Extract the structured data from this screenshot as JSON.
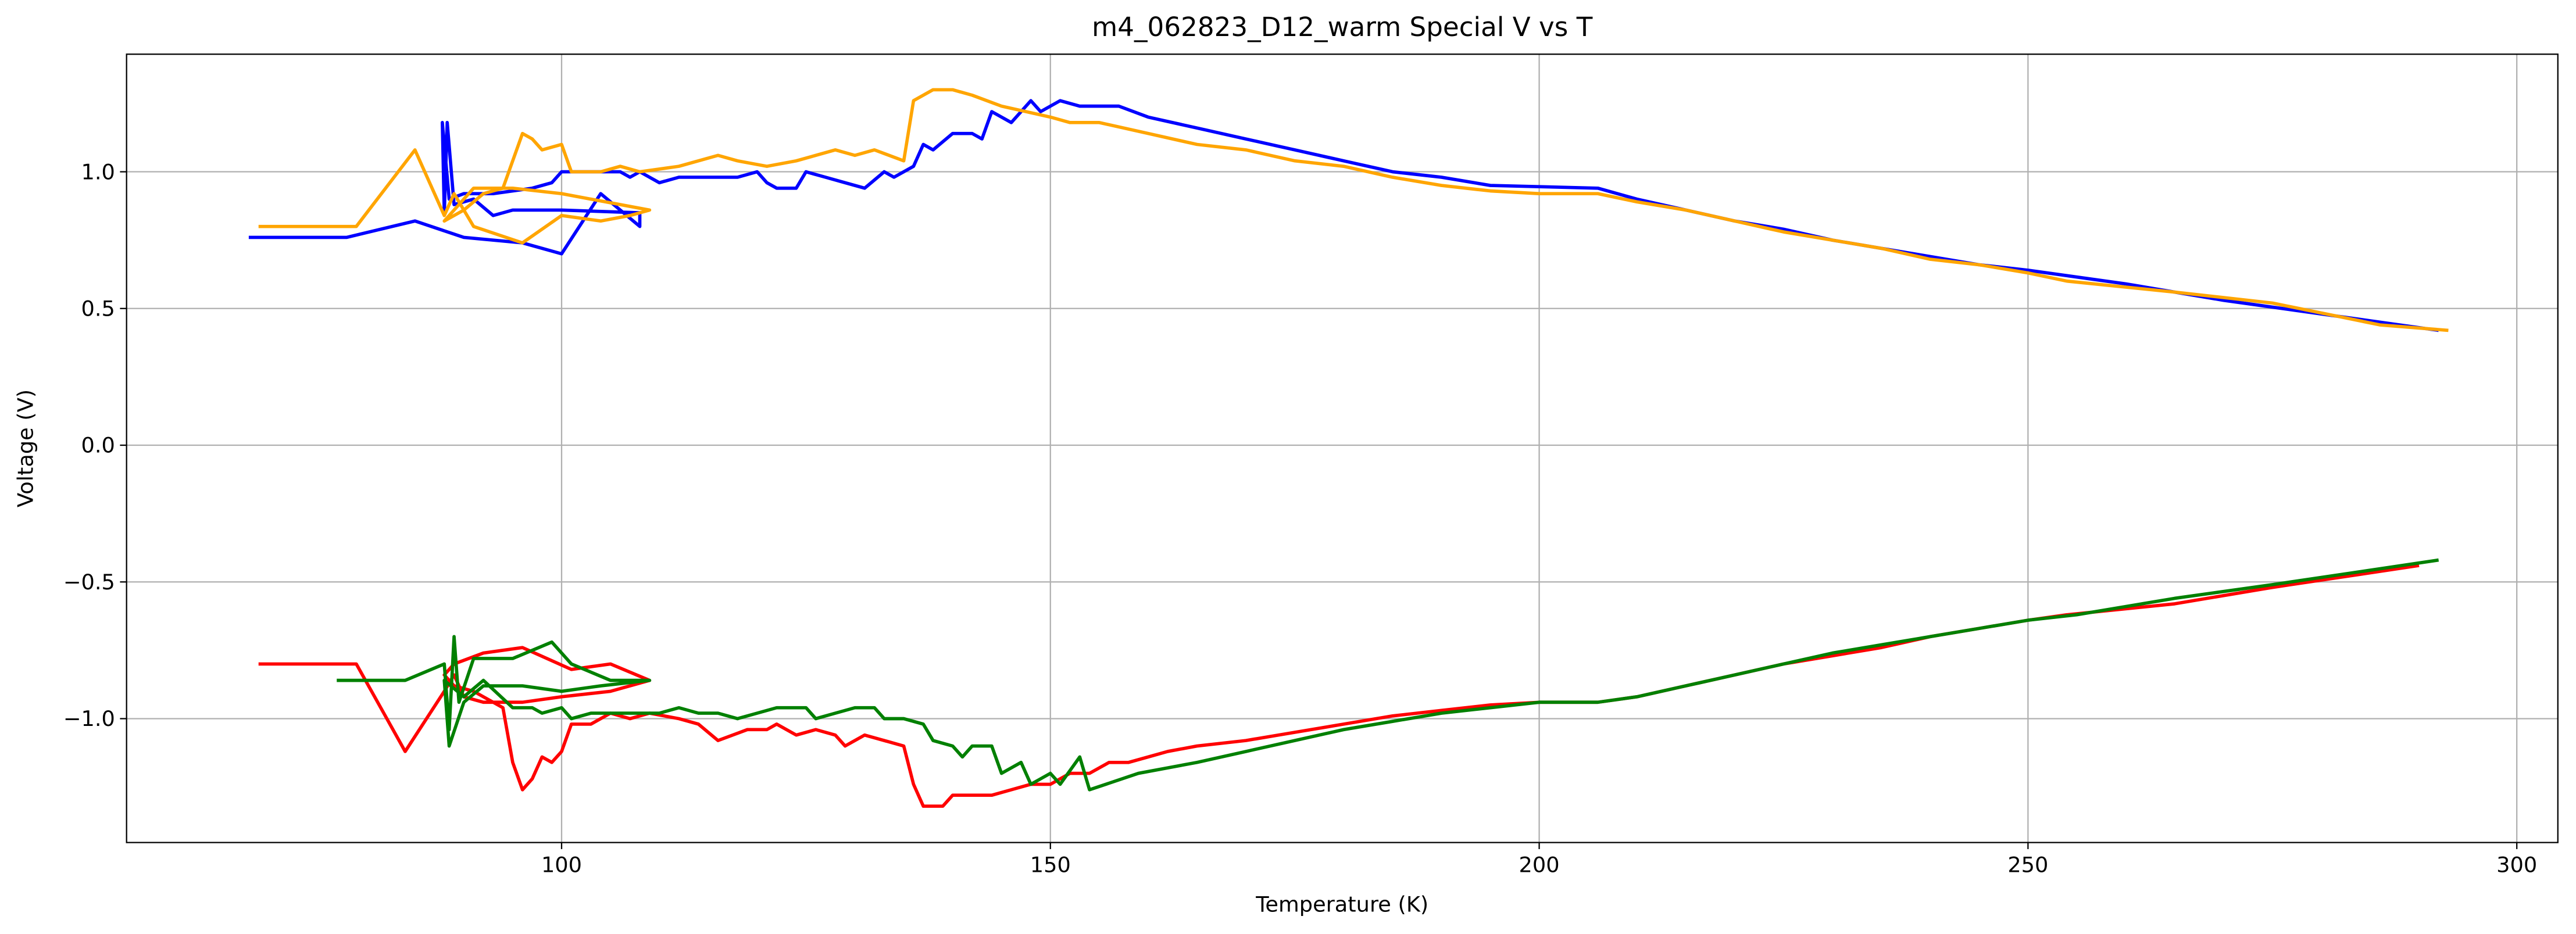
{
  "chart_data": {
    "type": "line",
    "title": "m4_062823_D12_warm Special V vs T",
    "x_label": "Temperature (K)",
    "y_label": "Voltage (V)",
    "xlim": [
      55.5,
      304.2
    ],
    "xticks": [
      100,
      150,
      200,
      250,
      300
    ],
    "ylim": [
      -1.453,
      1.43
    ],
    "yticks": [
      {
        "value": -1,
        "label": "−1.0"
      },
      {
        "value": -0.5,
        "label": "−0.5"
      },
      {
        "value": 0,
        "label": "0.0"
      },
      0.5,
      {
        "value": 1,
        "label": "1.0"
      }
    ],
    "grid": true,
    "series": [
      {
        "color": "#0000ff",
        "x": [
          68,
          78,
          85,
          90,
          96,
          100,
          104,
          108,
          108,
          100,
          95,
          93,
          91,
          89,
          88.3,
          88,
          87.8,
          88.5,
          90,
          93,
          97,
          99,
          100,
          102,
          104,
          106,
          107,
          108,
          110,
          112,
          118,
          120,
          121,
          122,
          124,
          125,
          127,
          129,
          131,
          133,
          134,
          136,
          137,
          138,
          140,
          142,
          143,
          144,
          146,
          148,
          149,
          151,
          153,
          157,
          160,
          165,
          170,
          175,
          180,
          185,
          190,
          195,
          206,
          210,
          215,
          220,
          225,
          230,
          235,
          240,
          245,
          250,
          254,
          260,
          265,
          270,
          280,
          292
        ],
        "values": [
          0.76,
          0.76,
          0.82,
          0.76,
          0.74,
          0.7,
          0.92,
          0.8,
          0.85,
          0.86,
          0.86,
          0.84,
          0.9,
          0.88,
          1.18,
          0.85,
          1.18,
          0.9,
          0.92,
          0.92,
          0.94,
          0.96,
          1.0,
          1.0,
          1.0,
          1.0,
          0.98,
          1.0,
          0.96,
          0.98,
          0.98,
          1.0,
          0.96,
          0.94,
          0.94,
          1.0,
          0.98,
          0.96,
          0.94,
          1.0,
          0.98,
          1.02,
          1.1,
          1.08,
          1.14,
          1.14,
          1.12,
          1.22,
          1.18,
          1.26,
          1.22,
          1.26,
          1.24,
          1.24,
          1.2,
          1.16,
          1.12,
          1.08,
          1.04,
          1.0,
          0.98,
          0.95,
          0.94,
          0.9,
          0.86,
          0.82,
          0.79,
          0.75,
          0.72,
          0.69,
          0.66,
          0.64,
          0.62,
          0.59,
          0.56,
          0.53,
          0.48,
          0.42
        ]
      },
      {
        "color": "#ffa500",
        "x": [
          69,
          79,
          85,
          88,
          89,
          91,
          96,
          100,
          104,
          107,
          109,
          100,
          95,
          91,
          88,
          90,
          92,
          94,
          95,
          96,
          97,
          98,
          100,
          101,
          104,
          106,
          108,
          112,
          116,
          118,
          121,
          124,
          128,
          130,
          132,
          135,
          136,
          138,
          140,
          142,
          145,
          150,
          152,
          155,
          160,
          165,
          170,
          175,
          180,
          185,
          190,
          195,
          200,
          206,
          210,
          215,
          220,
          225,
          230,
          235,
          240,
          245,
          250,
          254,
          265,
          275,
          286,
          293
        ],
        "values": [
          0.8,
          0.8,
          1.08,
          0.84,
          0.92,
          0.8,
          0.74,
          0.84,
          0.82,
          0.84,
          0.86,
          0.92,
          0.94,
          0.94,
          0.82,
          0.86,
          0.92,
          0.94,
          1.04,
          1.14,
          1.12,
          1.08,
          1.1,
          1.0,
          1.0,
          1.02,
          1.0,
          1.02,
          1.06,
          1.04,
          1.02,
          1.04,
          1.08,
          1.06,
          1.08,
          1.04,
          1.26,
          1.3,
          1.3,
          1.28,
          1.24,
          1.2,
          1.18,
          1.18,
          1.14,
          1.1,
          1.08,
          1.04,
          1.02,
          0.98,
          0.95,
          0.93,
          0.92,
          0.92,
          0.89,
          0.86,
          0.82,
          0.78,
          0.75,
          0.72,
          0.68,
          0.66,
          0.63,
          0.6,
          0.56,
          0.52,
          0.44,
          0.42
        ]
      },
      {
        "color": "#ff0000",
        "x": [
          69,
          79,
          84,
          88,
          89,
          90,
          92,
          96,
          100,
          105,
          109,
          105,
          101,
          96,
          92,
          89,
          88,
          89,
          91,
          94,
          95,
          96,
          97,
          98,
          99,
          100,
          101,
          103,
          105,
          107,
          109,
          112,
          114,
          116,
          119,
          121,
          122,
          124,
          126,
          128,
          129,
          131,
          133,
          135,
          136,
          137,
          139,
          140,
          144,
          146,
          148,
          150,
          152,
          154,
          156,
          158,
          160,
          162,
          165,
          170,
          175,
          180,
          185,
          190,
          195,
          200,
          206,
          210,
          215,
          220,
          225,
          230,
          235,
          240,
          245,
          250,
          254,
          265,
          275,
          290
        ],
        "values": [
          -0.8,
          -0.8,
          -1.12,
          -0.9,
          -0.84,
          -0.92,
          -0.94,
          -0.94,
          -0.92,
          -0.9,
          -0.86,
          -0.8,
          -0.82,
          -0.74,
          -0.76,
          -0.8,
          -0.84,
          -0.88,
          -0.9,
          -0.96,
          -1.16,
          -1.26,
          -1.22,
          -1.14,
          -1.16,
          -1.12,
          -1.02,
          -1.02,
          -0.98,
          -1.0,
          -0.98,
          -1.0,
          -1.02,
          -1.08,
          -1.04,
          -1.04,
          -1.02,
          -1.06,
          -1.04,
          -1.06,
          -1.1,
          -1.06,
          -1.08,
          -1.1,
          -1.24,
          -1.32,
          -1.32,
          -1.28,
          -1.28,
          -1.26,
          -1.24,
          -1.24,
          -1.2,
          -1.2,
          -1.16,
          -1.16,
          -1.14,
          -1.12,
          -1.1,
          -1.08,
          -1.05,
          -1.02,
          -0.99,
          -0.97,
          -0.95,
          -0.94,
          -0.94,
          -0.92,
          -0.88,
          -0.84,
          -0.8,
          -0.77,
          -0.74,
          -0.7,
          -0.67,
          -0.64,
          -0.62,
          -0.58,
          -0.52,
          -0.44
        ]
      },
      {
        "color": "#008000",
        "x": [
          77,
          84,
          88,
          88.5,
          89,
          89.5,
          91,
          95,
          99,
          101,
          105,
          109,
          104,
          100,
          96,
          92,
          90,
          88.5,
          88,
          90,
          92,
          95,
          97,
          98,
          100,
          101,
          103,
          105,
          110,
          112,
          114,
          116,
          118,
          120,
          122,
          125,
          126,
          128,
          130,
          132,
          133,
          135,
          137,
          138,
          140,
          141,
          142,
          144,
          145,
          147,
          148,
          150,
          151,
          153,
          154,
          159,
          165,
          170,
          175,
          180,
          185,
          190,
          195,
          200,
          206,
          210,
          215,
          220,
          225,
          230,
          235,
          240,
          245,
          250,
          255,
          265,
          275,
          292
        ],
        "values": [
          -0.86,
          -0.86,
          -0.8,
          -1.04,
          -0.7,
          -0.94,
          -0.78,
          -0.78,
          -0.72,
          -0.8,
          -0.86,
          -0.86,
          -0.88,
          -0.9,
          -0.88,
          -0.88,
          -0.94,
          -1.1,
          -0.86,
          -0.92,
          -0.86,
          -0.96,
          -0.96,
          -0.98,
          -0.96,
          -1.0,
          -0.98,
          -0.98,
          -0.98,
          -0.96,
          -0.98,
          -0.98,
          -1.0,
          -0.98,
          -0.96,
          -0.96,
          -1.0,
          -0.98,
          -0.96,
          -0.96,
          -1.0,
          -1.0,
          -1.02,
          -1.08,
          -1.1,
          -1.14,
          -1.1,
          -1.1,
          -1.2,
          -1.16,
          -1.24,
          -1.2,
          -1.24,
          -1.14,
          -1.26,
          -1.2,
          -1.16,
          -1.12,
          -1.08,
          -1.04,
          -1.01,
          -0.98,
          -0.96,
          -0.94,
          -0.94,
          -0.92,
          -0.88,
          -0.84,
          -0.8,
          -0.76,
          -0.73,
          -0.7,
          -0.67,
          -0.64,
          -0.62,
          -0.56,
          -0.51,
          -0.42
        ]
      }
    ]
  }
}
